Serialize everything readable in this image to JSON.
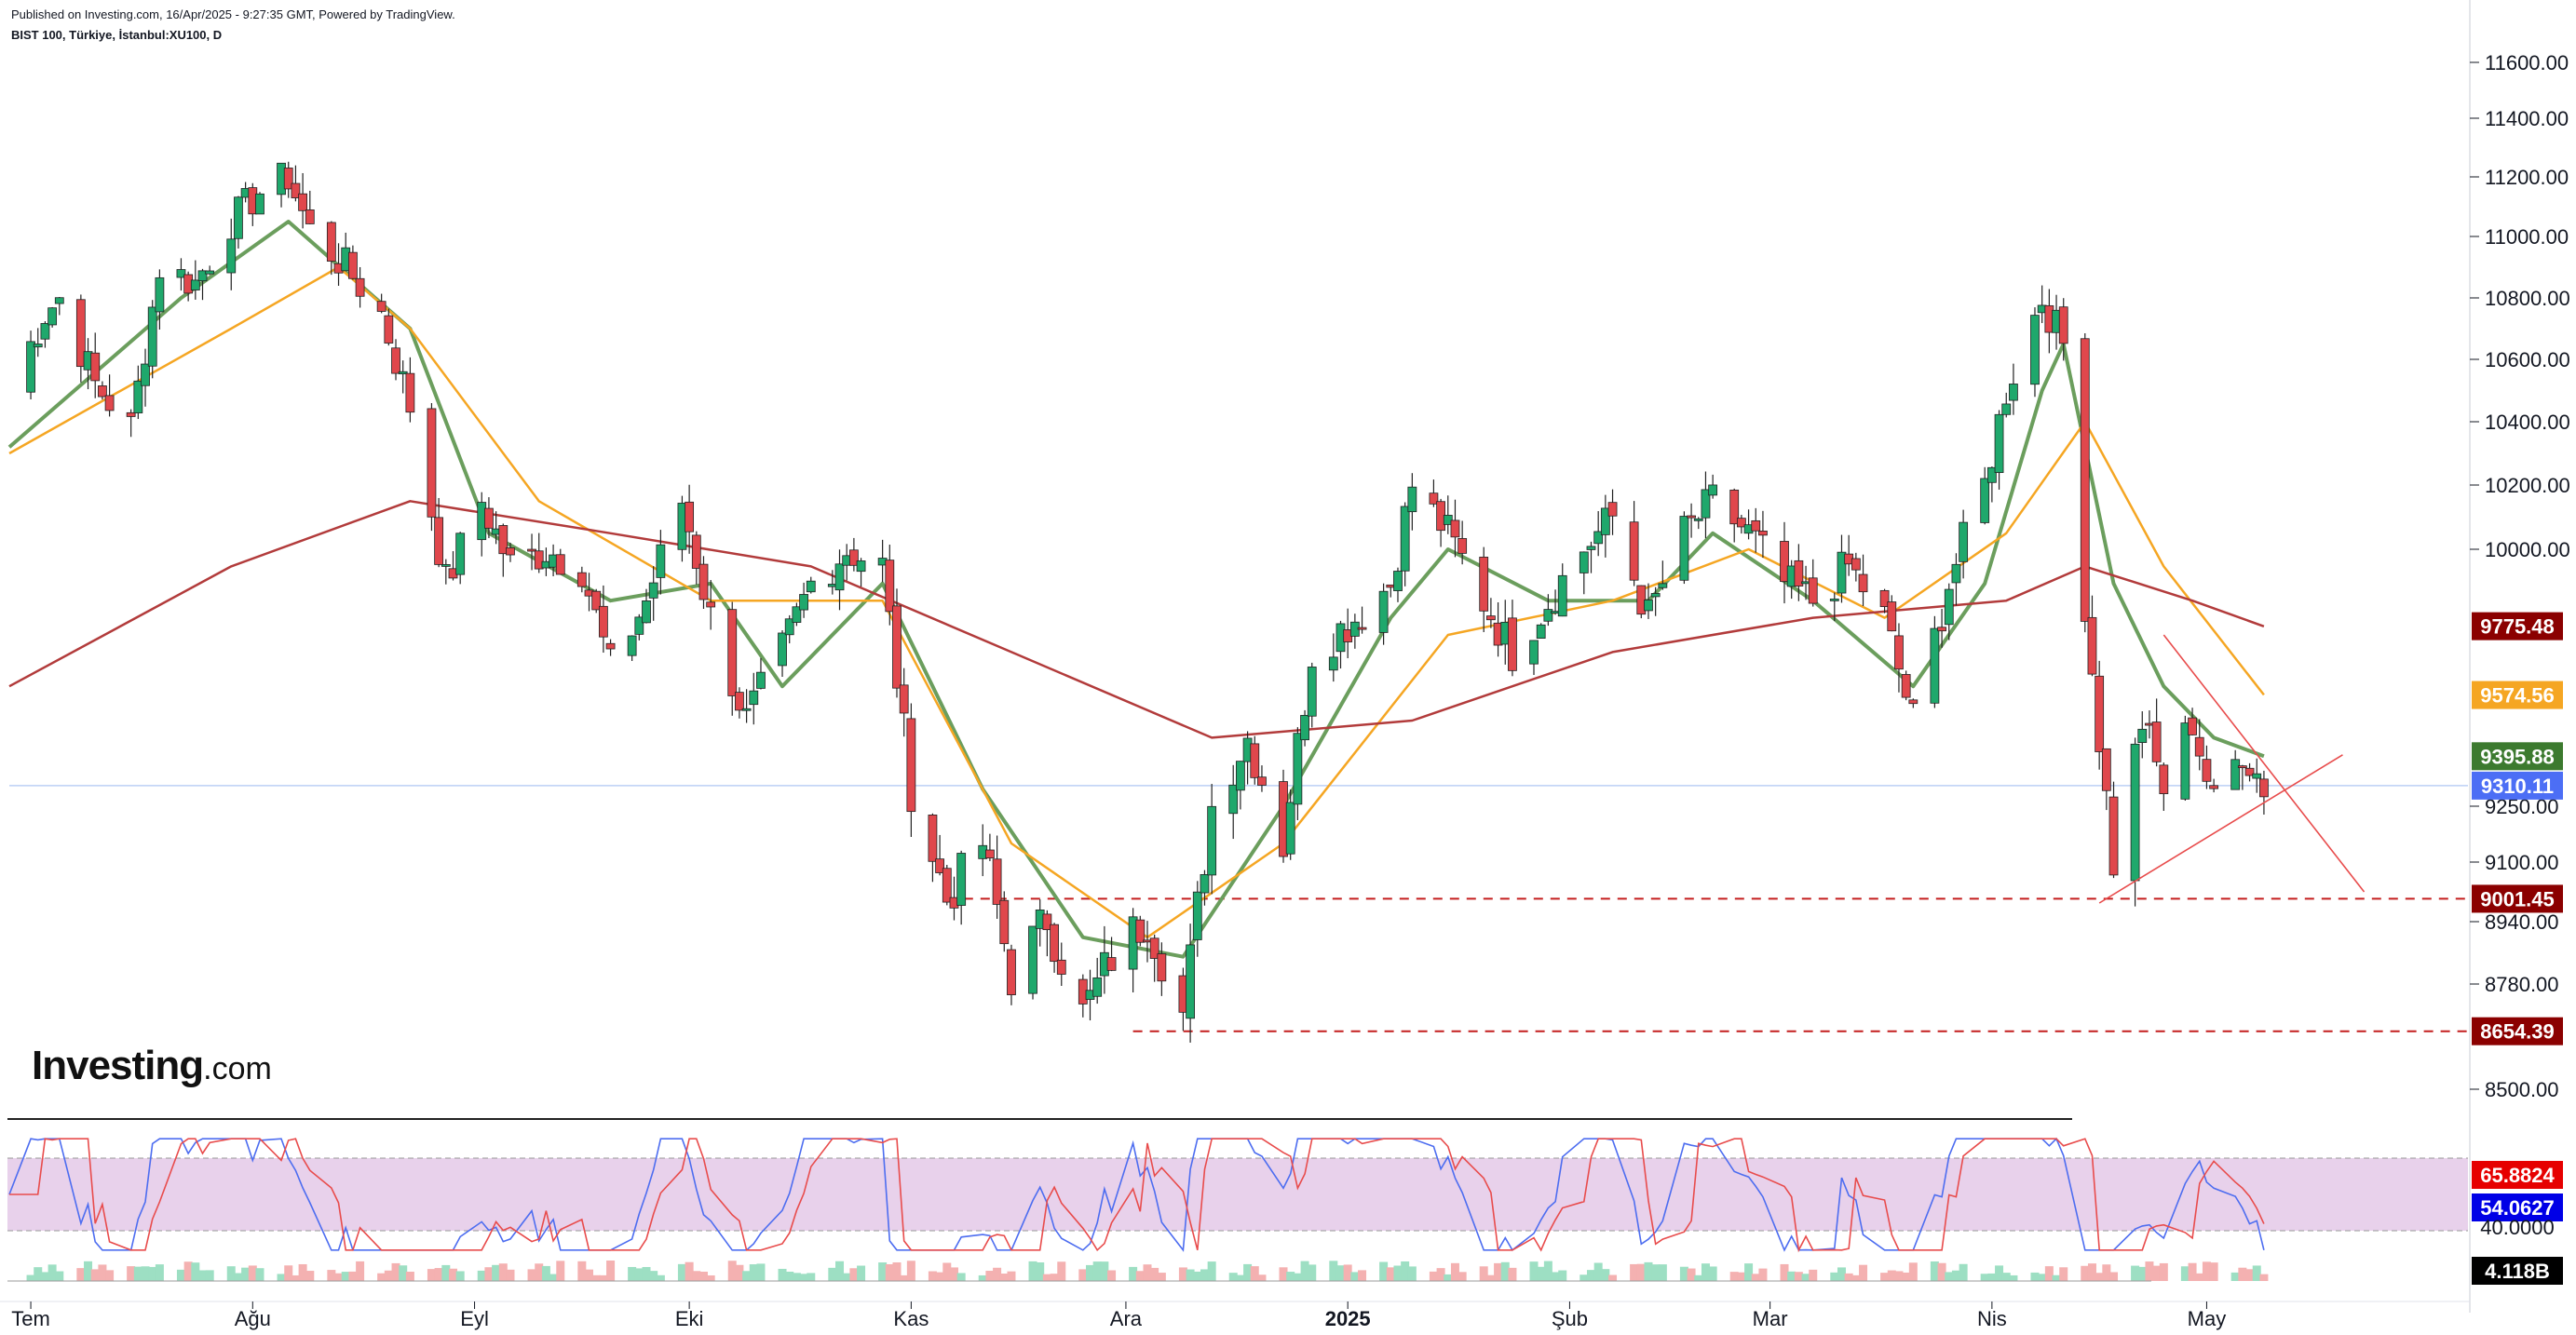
{
  "header": {
    "publish_line": "Published on Investing.com, 16/Apr/2025 - 9:27:35 GMT, Powered by TradingView.",
    "symbol_line": "BIST 100, Türkiye, İstanbul:XU100, D"
  },
  "logo": {
    "brand": "Investing",
    "suffix": ".com"
  },
  "chart_data": {
    "type": "candlestick",
    "symbol": "XU100",
    "interval": "D",
    "x_axis": {
      "tick_labels": [
        "Tem",
        "Ağu",
        "Eyl",
        "Eki",
        "Kas",
        "Ara",
        "2025",
        "Şub",
        "Mar",
        "Nis",
        "May"
      ],
      "range": [
        "2024-06-28",
        "2025-05-31"
      ]
    },
    "y_axis": {
      "position": "right",
      "tick_labels": [
        "11600.00",
        "11400.00",
        "11200.00",
        "11000.00",
        "10800.00",
        "10600.00",
        "10400.00",
        "10200.00",
        "10000.00",
        "9250.00",
        "9100.00",
        "8940.00",
        "8780.00",
        "8500.00"
      ],
      "range": [
        8420,
        11650
      ]
    },
    "candle_anchors": [
      [
        "2024-06-28",
        10500
      ],
      [
        "2024-07-03",
        10750
      ],
      [
        "2024-07-05",
        10800
      ],
      [
        "2024-07-10",
        10520
      ],
      [
        "2024-07-15",
        10380
      ],
      [
        "2024-07-19",
        10900
      ],
      [
        "2024-07-24",
        10850
      ],
      [
        "2024-07-29",
        11050
      ],
      [
        "2024-08-02",
        11150
      ],
      [
        "2024-08-06",
        11200
      ],
      [
        "2024-08-09",
        11020
      ],
      [
        "2024-08-14",
        10900
      ],
      [
        "2024-08-19",
        10750
      ],
      [
        "2024-08-23",
        10450
      ],
      [
        "2024-08-28",
        9900
      ],
      [
        "2024-09-02",
        10150
      ],
      [
        "2024-09-06",
        9950
      ],
      [
        "2024-09-11",
        10000
      ],
      [
        "2024-09-16",
        9950
      ],
      [
        "2024-09-20",
        9650
      ],
      [
        "2024-09-25",
        9850
      ],
      [
        "2024-09-30",
        10150
      ],
      [
        "2024-10-04",
        9800
      ],
      [
        "2024-10-09",
        9500
      ],
      [
        "2024-10-14",
        9700
      ],
      [
        "2024-10-18",
        9900
      ],
      [
        "2024-10-23",
        10000
      ],
      [
        "2024-10-28",
        9950
      ],
      [
        "2024-11-01",
        9300
      ],
      [
        "2024-11-06",
        9000
      ],
      [
        "2024-11-11",
        9150
      ],
      [
        "2024-11-15",
        8800
      ],
      [
        "2024-11-20",
        8950
      ],
      [
        "2024-11-25",
        8700
      ],
      [
        "2024-11-29",
        8850
      ],
      [
        "2024-12-04",
        8950
      ],
      [
        "2024-12-09",
        8700
      ],
      [
        "2024-12-13",
        9250
      ],
      [
        "2024-12-18",
        9450
      ],
      [
        "2024-12-23",
        9150
      ],
      [
        "2024-12-27",
        9700
      ],
      [
        "2025-01-02",
        9800
      ],
      [
        "2025-01-07",
        9900
      ],
      [
        "2025-01-10",
        10200
      ],
      [
        "2025-01-15",
        10050
      ],
      [
        "2025-01-20",
        9850
      ],
      [
        "2025-01-24",
        9700
      ],
      [
        "2025-01-29",
        9850
      ],
      [
        "2025-02-03",
        10000
      ],
      [
        "2025-02-07",
        10100
      ],
      [
        "2025-02-12",
        9800
      ],
      [
        "2025-02-17",
        10050
      ],
      [
        "2025-02-21",
        10150
      ],
      [
        "2025-02-26",
        10050
      ],
      [
        "2025-03-03",
        9900
      ],
      [
        "2025-03-07",
        9850
      ],
      [
        "2025-03-12",
        9950
      ],
      [
        "2025-03-17",
        9800
      ],
      [
        "2025-03-21",
        9500
      ],
      [
        "2025-03-26",
        9900
      ],
      [
        "2025-03-31",
        10200
      ],
      [
        "2025-04-03",
        10500
      ],
      [
        "2025-04-08",
        10800
      ],
      [
        "2025-04-11",
        10650
      ],
      [
        "2025-04-14",
        9850
      ],
      [
        "2025-04-16",
        9450
      ],
      [
        "2025-04-18",
        9100
      ],
      [
        "2025-04-22",
        9500
      ],
      [
        "2025-04-25",
        9300
      ],
      [
        "2025-04-29",
        9500
      ],
      [
        "2025-05-02",
        9250
      ],
      [
        "2025-05-06",
        9420
      ],
      [
        "2025-05-09",
        9310
      ]
    ],
    "moving_averages": [
      {
        "color": "#6b9e5d",
        "points": [
          [
            "2024-06-28",
            10320
          ],
          [
            "2024-07-22",
            10800
          ],
          [
            "2024-08-06",
            11050
          ],
          [
            "2024-08-23",
            10700
          ],
          [
            "2024-09-03",
            10050
          ],
          [
            "2024-09-20",
            9850
          ],
          [
            "2024-10-04",
            9900
          ],
          [
            "2024-10-14",
            9600
          ],
          [
            "2024-10-28",
            9900
          ],
          [
            "2024-11-11",
            9300
          ],
          [
            "2024-11-25",
            8900
          ],
          [
            "2024-12-09",
            8850
          ],
          [
            "2024-12-23",
            9250
          ],
          [
            "2025-01-07",
            9800
          ],
          [
            "2025-01-15",
            10000
          ],
          [
            "2025-01-29",
            9850
          ],
          [
            "2025-02-12",
            9850
          ],
          [
            "2025-02-21",
            10050
          ],
          [
            "2025-03-07",
            9850
          ],
          [
            "2025-03-21",
            9600
          ],
          [
            "2025-03-31",
            9900
          ],
          [
            "2025-04-08",
            10500
          ],
          [
            "2025-04-11",
            10650
          ],
          [
            "2025-04-18",
            9900
          ],
          [
            "2025-04-25",
            9600
          ],
          [
            "2025-05-02",
            9450
          ],
          [
            "2025-05-09",
            9396
          ]
        ]
      },
      {
        "color": "#f5a623",
        "points": [
          [
            "2024-06-28",
            10300
          ],
          [
            "2024-07-29",
            10700
          ],
          [
            "2024-08-13",
            10900
          ],
          [
            "2024-08-23",
            10700
          ],
          [
            "2024-09-10",
            10150
          ],
          [
            "2024-10-04",
            9850
          ],
          [
            "2024-10-28",
            9850
          ],
          [
            "2024-11-15",
            9150
          ],
          [
            "2024-12-04",
            8900
          ],
          [
            "2024-12-23",
            9150
          ],
          [
            "2025-01-15",
            9750
          ],
          [
            "2025-02-07",
            9850
          ],
          [
            "2025-02-26",
            10000
          ],
          [
            "2025-03-17",
            9800
          ],
          [
            "2025-04-03",
            10050
          ],
          [
            "2025-04-14",
            10400
          ],
          [
            "2025-04-25",
            9950
          ],
          [
            "2025-05-09",
            9575
          ]
        ]
      },
      {
        "color": "#b23b3b",
        "points": [
          [
            "2024-06-28",
            9600
          ],
          [
            "2024-07-29",
            9950
          ],
          [
            "2024-08-23",
            10150
          ],
          [
            "2024-09-20",
            10050
          ],
          [
            "2024-10-18",
            9950
          ],
          [
            "2024-11-15",
            9700
          ],
          [
            "2024-12-13",
            9450
          ],
          [
            "2025-01-10",
            9500
          ],
          [
            "2025-02-07",
            9700
          ],
          [
            "2025-03-07",
            9800
          ],
          [
            "2025-04-03",
            9850
          ],
          [
            "2025-04-14",
            9950
          ],
          [
            "2025-04-29",
            9850
          ],
          [
            "2025-05-09",
            9775
          ]
        ]
      }
    ],
    "price_tags": [
      {
        "label": "9775.48",
        "value": 9775.48,
        "color": "#8b0000"
      },
      {
        "label": "9574.56",
        "value": 9574.56,
        "color": "#f5a623"
      },
      {
        "label": "9395.88",
        "value": 9395.88,
        "color": "#3c7a2f"
      },
      {
        "label": "9310.11",
        "value": 9310.11,
        "color": "#4c6ef5"
      },
      {
        "label": "9001.45",
        "value": 9001.45,
        "color": "#8b0000"
      },
      {
        "label": "8654.39",
        "value": 8654.39,
        "color": "#8b0000"
      }
    ],
    "horizontal_lines": [
      {
        "value": 9001.45,
        "from": "2024-11-06",
        "style": "dashed",
        "color": "#c41e1e"
      },
      {
        "value": 8654.39,
        "from": "2024-12-02",
        "style": "dashed",
        "color": "#c41e1e"
      },
      {
        "value": 9310.11,
        "from": "2024-06-28",
        "style": "solid",
        "color": "#bcd0f5"
      }
    ],
    "trend_lines": [
      {
        "start": [
          "2025-04-16",
          8990
        ],
        "end": [
          "2025-05-20",
          9400
        ],
        "color": "#e84c4c"
      },
      {
        "start": [
          "2025-04-25",
          9750
        ],
        "end": [
          "2025-05-23",
          9020
        ],
        "color": "#e84c4c"
      }
    ],
    "stochastic": {
      "tag_labels": [
        {
          "label": "65.8824",
          "color": "#e60000"
        },
        {
          "label": "54.0627",
          "color": "#0000e6"
        },
        {
          "label": "40.0000",
          "color": "#131722"
        }
      ],
      "band": [
        20,
        80
      ],
      "k_color": "#4d6df0",
      "d_color": "#e84c4c"
    },
    "volume": {
      "tag_label": "4.118B",
      "up_color": "#9ddfc3",
      "down_color": "#f4b1b1"
    }
  }
}
